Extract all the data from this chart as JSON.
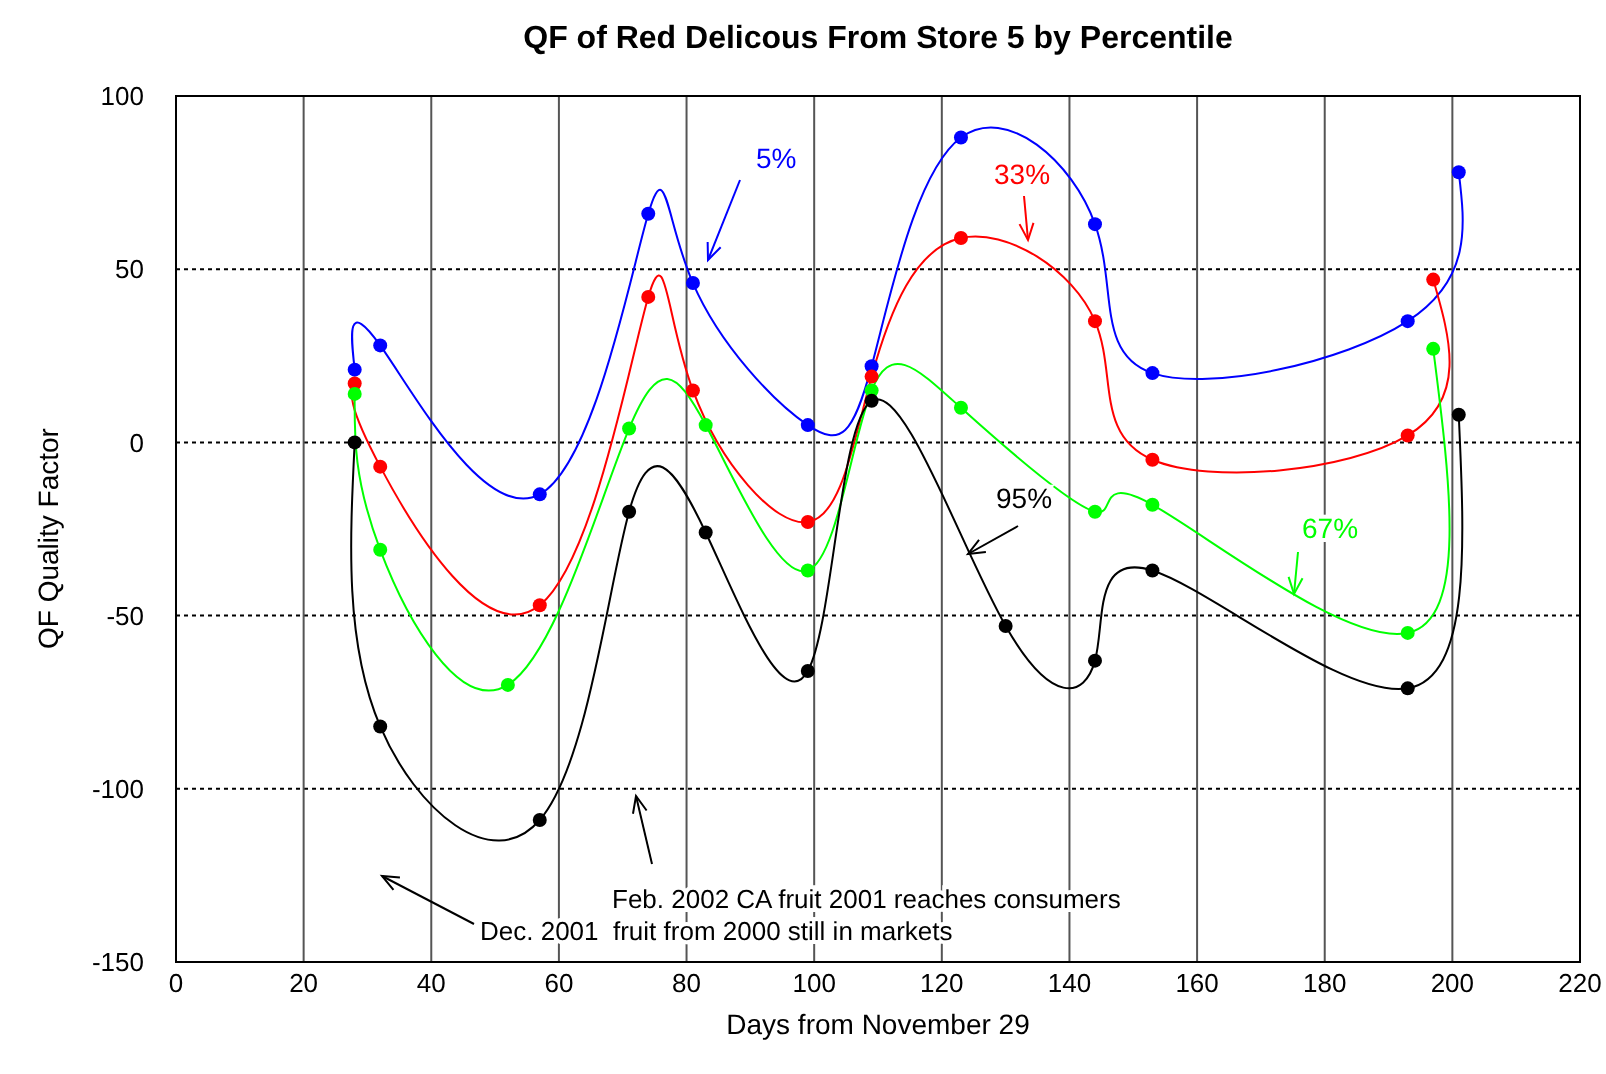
{
  "chart_data": {
    "type": "line",
    "title": "QF of Red Delicous From Store 5 by Percentile",
    "xlabel": "Days from November 29",
    "ylabel": "QF Quality Factor",
    "xlim": [
      0,
      220
    ],
    "xticks": [
      0,
      20,
      40,
      60,
      80,
      100,
      120,
      140,
      160,
      180,
      200,
      220
    ],
    "ylim": [
      -150,
      100
    ],
    "yticks": [
      -150,
      -100,
      -50,
      0,
      50,
      100
    ],
    "grid": true,
    "marker": "circle",
    "line_style": "solid",
    "series": [
      {
        "name": "5%",
        "color": "#0000ff",
        "x": [
          28,
          32,
          57,
          74,
          81,
          99,
          109,
          123,
          144,
          153,
          193,
          201
        ],
        "values": [
          21,
          28,
          -15,
          66,
          46,
          5,
          22,
          88,
          63,
          20,
          35,
          78
        ]
      },
      {
        "name": "33%",
        "color": "#ff0000",
        "x": [
          28,
          32,
          57,
          74,
          81,
          99,
          109,
          123,
          144,
          153,
          193,
          197
        ],
        "values": [
          17,
          -7,
          -47,
          42,
          15,
          -23,
          19,
          59,
          35,
          -5,
          2,
          47
        ]
      },
      {
        "name": "67%",
        "color": "#00ff00",
        "x": [
          28,
          32,
          52,
          71,
          83,
          99,
          109,
          123,
          144,
          153,
          193,
          197
        ],
        "values": [
          14,
          -31,
          -70,
          4,
          5,
          -37,
          15,
          10,
          -20,
          -18,
          -55,
          27
        ]
      },
      {
        "name": "95%",
        "color": "#000000",
        "x": [
          28,
          32,
          57,
          71,
          83,
          99,
          109,
          130,
          144,
          153,
          193,
          201
        ],
        "values": [
          0,
          -82,
          -109,
          -20,
          -26,
          -66,
          12,
          -53,
          -63,
          -37,
          -71,
          8
        ]
      }
    ],
    "annotations": [
      "Feb. 2002 CA fruit 2001 reaches consumers",
      "Dec. 2001  fruit from 2000 still in markets"
    ]
  }
}
